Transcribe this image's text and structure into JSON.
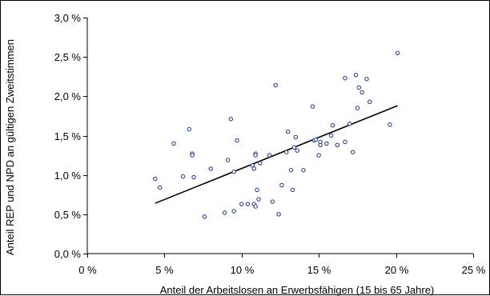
{
  "chart_data": {
    "type": "scatter",
    "title": "",
    "xlabel": "Anteil der Arbeitslosen an Erwerbsfähigen (15 bis 65 Jahre)",
    "ylabel": "Anteil REP und NPD an gültigen Zweitstimmen",
    "xlim": [
      0,
      25
    ],
    "ylim": [
      0,
      3
    ],
    "x_ticks": [
      0,
      5,
      10,
      15,
      20,
      25
    ],
    "y_ticks": [
      0,
      0.5,
      1.0,
      1.5,
      2.0,
      2.5,
      3.0
    ],
    "x_tick_labels": [
      "0 %",
      "5 %",
      "10 %",
      "15 %",
      "20 %",
      "25 %"
    ],
    "y_tick_labels": [
      "0,0 %",
      "0,5 %",
      "1,0 %",
      "1,5 %",
      "2,0 %",
      "2,5 %",
      "3,0 %"
    ],
    "grid": false,
    "legend": "none",
    "marker_color": "#1a2f8a",
    "trendline_color": "#000000",
    "points": [
      [
        4.4,
        0.95
      ],
      [
        4.7,
        0.84
      ],
      [
        5.6,
        1.4
      ],
      [
        6.2,
        0.98
      ],
      [
        6.6,
        1.58
      ],
      [
        6.8,
        1.27
      ],
      [
        6.8,
        1.25
      ],
      [
        6.9,
        0.97
      ],
      [
        7.6,
        0.47
      ],
      [
        8.0,
        1.08
      ],
      [
        8.9,
        0.52
      ],
      [
        9.1,
        1.19
      ],
      [
        9.3,
        1.71
      ],
      [
        9.5,
        0.54
      ],
      [
        9.5,
        1.04
      ],
      [
        9.7,
        1.44
      ],
      [
        10.0,
        0.63
      ],
      [
        10.4,
        0.63
      ],
      [
        10.7,
        1.12
      ],
      [
        10.8,
        1.08
      ],
      [
        10.8,
        0.63
      ],
      [
        10.9,
        0.6
      ],
      [
        10.9,
        1.27
      ],
      [
        11.0,
        0.81
      ],
      [
        11.1,
        0.69
      ],
      [
        10.9,
        1.25
      ],
      [
        11.2,
        1.15
      ],
      [
        11.8,
        1.25
      ],
      [
        12.0,
        0.66
      ],
      [
        12.2,
        2.14
      ],
      [
        12.4,
        0.5
      ],
      [
        12.6,
        0.87
      ],
      [
        12.9,
        1.29
      ],
      [
        13.0,
        1.55
      ],
      [
        13.2,
        1.06
      ],
      [
        13.3,
        0.81
      ],
      [
        13.4,
        1.35
      ],
      [
        13.5,
        1.48
      ],
      [
        13.6,
        1.31
      ],
      [
        14.0,
        1.06
      ],
      [
        14.6,
        1.87
      ],
      [
        14.7,
        1.44
      ],
      [
        14.8,
        1.45
      ],
      [
        15.0,
        1.25
      ],
      [
        15.1,
        1.38
      ],
      [
        15.1,
        1.42
      ],
      [
        15.5,
        1.4
      ],
      [
        15.8,
        1.5
      ],
      [
        15.9,
        1.63
      ],
      [
        16.2,
        1.38
      ],
      [
        16.7,
        1.42
      ],
      [
        16.7,
        2.23
      ],
      [
        17.0,
        1.65
      ],
      [
        17.2,
        1.29
      ],
      [
        17.4,
        2.27
      ],
      [
        17.5,
        1.85
      ],
      [
        17.6,
        2.11
      ],
      [
        17.8,
        2.05
      ],
      [
        18.1,
        2.22
      ],
      [
        18.3,
        1.93
      ],
      [
        19.6,
        1.64
      ],
      [
        20.1,
        2.55
      ]
    ],
    "trendline": {
      "x": [
        4.4,
        20.1
      ],
      "y": [
        0.64,
        1.88
      ]
    }
  }
}
